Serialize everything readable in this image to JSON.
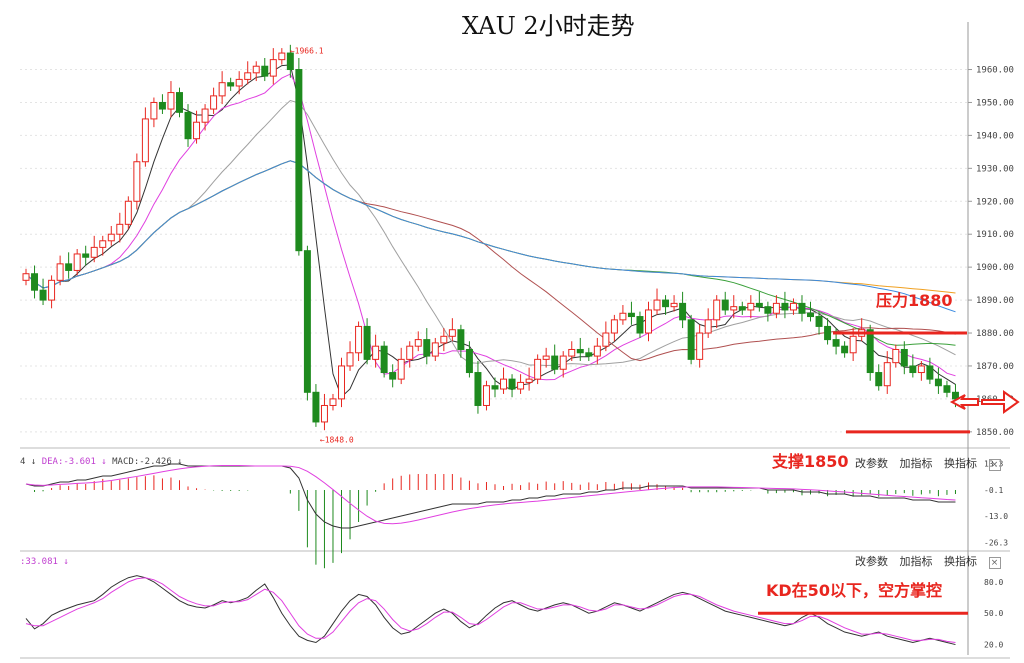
{
  "title": "XAU 2小时走势",
  "price_panel": {
    "y_ticks": [
      "1960.00",
      "1950.00",
      "1940.00",
      "1930.00",
      "1920.00",
      "1910.00",
      "1900.00",
      "1890.00",
      "1880.00",
      "1870.00",
      "1860.00",
      "1850.00"
    ],
    "high_label": "1966.1",
    "low_label": "1848.0",
    "resistance_label": "压力1880",
    "support_label": "支撑1850"
  },
  "macd_panel": {
    "header": [
      "4 ↓",
      "DEA:-3.601 ↓",
      "MACD:-2.426 ↓"
    ],
    "y_ticks": [
      "13.3",
      "-0.1",
      "-13.0",
      "-26.3"
    ],
    "buttons": [
      "改参数",
      "加指标",
      "换指标"
    ]
  },
  "kd_panel": {
    "header": ":33.081 ↓",
    "y_ticks": [
      "80.0",
      "50.0",
      "20.0"
    ],
    "buttons": [
      "改参数",
      "加指标",
      "换指标"
    ],
    "annotation": "KD在50以下，空方掌控"
  },
  "close_symbol": "×",
  "colors": {
    "up": "#e8261f",
    "down": "#1e8a1e",
    "ann": "#e8261f"
  },
  "chart_data": {
    "type": "candlestick",
    "x_count": 110,
    "ylim": [
      1846,
      1972
    ],
    "closes": [
      1898,
      1893,
      1890,
      1896,
      1901,
      1899,
      1904,
      1903,
      1906,
      1908,
      1910,
      1913,
      1920,
      1932,
      1945,
      1950,
      1948,
      1953,
      1947,
      1939,
      1944,
      1948,
      1952,
      1956,
      1955,
      1957,
      1959,
      1961,
      1958,
      1963,
      1965,
      1960,
      1905,
      1862,
      1853,
      1858,
      1860,
      1870,
      1874,
      1882,
      1872,
      1876,
      1868,
      1866,
      1872,
      1876,
      1878,
      1873,
      1877,
      1879,
      1881,
      1875,
      1868,
      1858,
      1864,
      1863,
      1866,
      1863,
      1865,
      1866,
      1872,
      1873,
      1869,
      1873,
      1875,
      1874,
      1873,
      1876,
      1880,
      1884,
      1886,
      1885,
      1880,
      1887,
      1890,
      1888,
      1889,
      1884,
      1872,
      1880,
      1884,
      1890,
      1887,
      1888,
      1887,
      1889,
      1888,
      1886,
      1889,
      1887,
      1889,
      1886,
      1885,
      1882,
      1878,
      1876,
      1874,
      1879,
      1881,
      1868,
      1864,
      1871,
      1875,
      1870,
      1868,
      1870,
      1866,
      1864,
      1862,
      1860
    ],
    "macd_dif": [
      3,
      2,
      2,
      3,
      4,
      4,
      5,
      5,
      6,
      7,
      7,
      8,
      9,
      10,
      11,
      12,
      12,
      13,
      13,
      12,
      12,
      12,
      12,
      12,
      12,
      12,
      12,
      12,
      12,
      12,
      12,
      11,
      6,
      -5,
      -12,
      -16,
      -18,
      -19,
      -19,
      -18,
      -17,
      -16,
      -15,
      -14,
      -13,
      -12,
      -11,
      -10,
      -9,
      -8,
      -7,
      -7,
      -7,
      -7,
      -6,
      -6,
      -6,
      -5,
      -5,
      -4,
      -4,
      -3,
      -3,
      -2,
      -2,
      -2,
      -1,
      -1,
      0,
      0,
      1,
      1,
      1,
      2,
      2,
      2,
      2,
      2,
      1,
      1,
      1,
      1,
      1,
      1,
      1,
      1,
      1,
      0,
      0,
      0,
      0,
      -1,
      -1,
      -1,
      -2,
      -2,
      -2,
      -3,
      -3,
      -3,
      -4,
      -4,
      -4,
      -4,
      -5,
      -5,
      -5,
      -6,
      -6,
      -6
    ],
    "kd_k": [
      45,
      35,
      40,
      48,
      52,
      55,
      58,
      60,
      62,
      68,
      75,
      80,
      84,
      86,
      84,
      80,
      74,
      68,
      62,
      58,
      56,
      55,
      58,
      62,
      60,
      62,
      65,
      72,
      78,
      65,
      50,
      38,
      28,
      24,
      22,
      28,
      40,
      52,
      62,
      68,
      66,
      58,
      46,
      36,
      30,
      32,
      38,
      44,
      50,
      54,
      50,
      42,
      36,
      40,
      48,
      55,
      60,
      62,
      58,
      54,
      52,
      55,
      58,
      60,
      58,
      54,
      50,
      52,
      56,
      60,
      58,
      55,
      52,
      56,
      60,
      64,
      68,
      70,
      68,
      64,
      60,
      56,
      52,
      50,
      48,
      46,
      44,
      42,
      40,
      38,
      40,
      46,
      50,
      46,
      40,
      36,
      32,
      30,
      28,
      30,
      32,
      28,
      26,
      24,
      22,
      24,
      26,
      24,
      22,
      20
    ],
    "kd_d": [
      40,
      38,
      38,
      42,
      46,
      50,
      54,
      57,
      60,
      64,
      70,
      75,
      80,
      83,
      84,
      82,
      78,
      72,
      66,
      62,
      59,
      57,
      57,
      60,
      61,
      61,
      63,
      68,
      73,
      70,
      62,
      50,
      38,
      30,
      26,
      26,
      32,
      42,
      52,
      60,
      64,
      62,
      54,
      44,
      36,
      33,
      35,
      40,
      46,
      51,
      51,
      46,
      40,
      39,
      44,
      50,
      56,
      60,
      60,
      57,
      54,
      54,
      56,
      58,
      58,
      56,
      53,
      52,
      54,
      58,
      58,
      56,
      54,
      55,
      58,
      62,
      66,
      68,
      68,
      66,
      62,
      58,
      55,
      52,
      50,
      48,
      46,
      44,
      42,
      40,
      40,
      43,
      47,
      47,
      44,
      40,
      36,
      33,
      30,
      30,
      31,
      30,
      28,
      26,
      24,
      24,
      25,
      25,
      23,
      22
    ]
  }
}
